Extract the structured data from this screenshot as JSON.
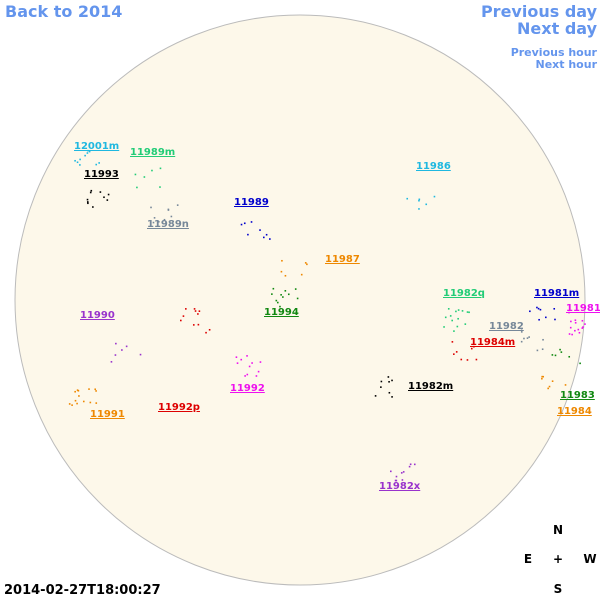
{
  "nav": {
    "back": "Back to 2014",
    "previous_day": "Previous day",
    "next_day": "Next day",
    "previous_hour": "Previous hour",
    "next_hour": "Next hour"
  },
  "regions": [
    {
      "label": "12001m",
      "color": "#1fb8e0"
    },
    {
      "label": "11989m",
      "color": "#22cc77"
    },
    {
      "label": "11993",
      "color": "#000000"
    },
    {
      "label": "11986",
      "color": "#1fb8e0"
    },
    {
      "label": "11989",
      "color": "#0000cc"
    },
    {
      "label": "11989n",
      "color": "#778899"
    },
    {
      "label": "11987",
      "color": "#ee8800"
    },
    {
      "label": "11982q",
      "color": "#22cc77"
    },
    {
      "label": "11981m",
      "color": "#0000cc"
    },
    {
      "label": "11981",
      "color": "#ee11ee"
    },
    {
      "label": "11990",
      "color": "#9933cc"
    },
    {
      "label": "11994",
      "color": "#118811"
    },
    {
      "label": "11982",
      "color": "#778899"
    },
    {
      "label": "11984m",
      "color": "#dd0000"
    },
    {
      "label": "11982m",
      "color": "#000000"
    },
    {
      "label": "11992",
      "color": "#ee11ee"
    },
    {
      "label": "11983",
      "color": "#118811"
    },
    {
      "label": "11992p",
      "color": "#dd0000"
    },
    {
      "label": "11991",
      "color": "#ee8800"
    },
    {
      "label": "11984",
      "color": "#ee8800"
    },
    {
      "label": "11982x",
      "color": "#9933cc"
    }
  ],
  "compass": {
    "north": "N",
    "east": "E",
    "center": "+",
    "west": "W",
    "south": "S"
  },
  "timestamp": "2014-02-27T18:00:27"
}
